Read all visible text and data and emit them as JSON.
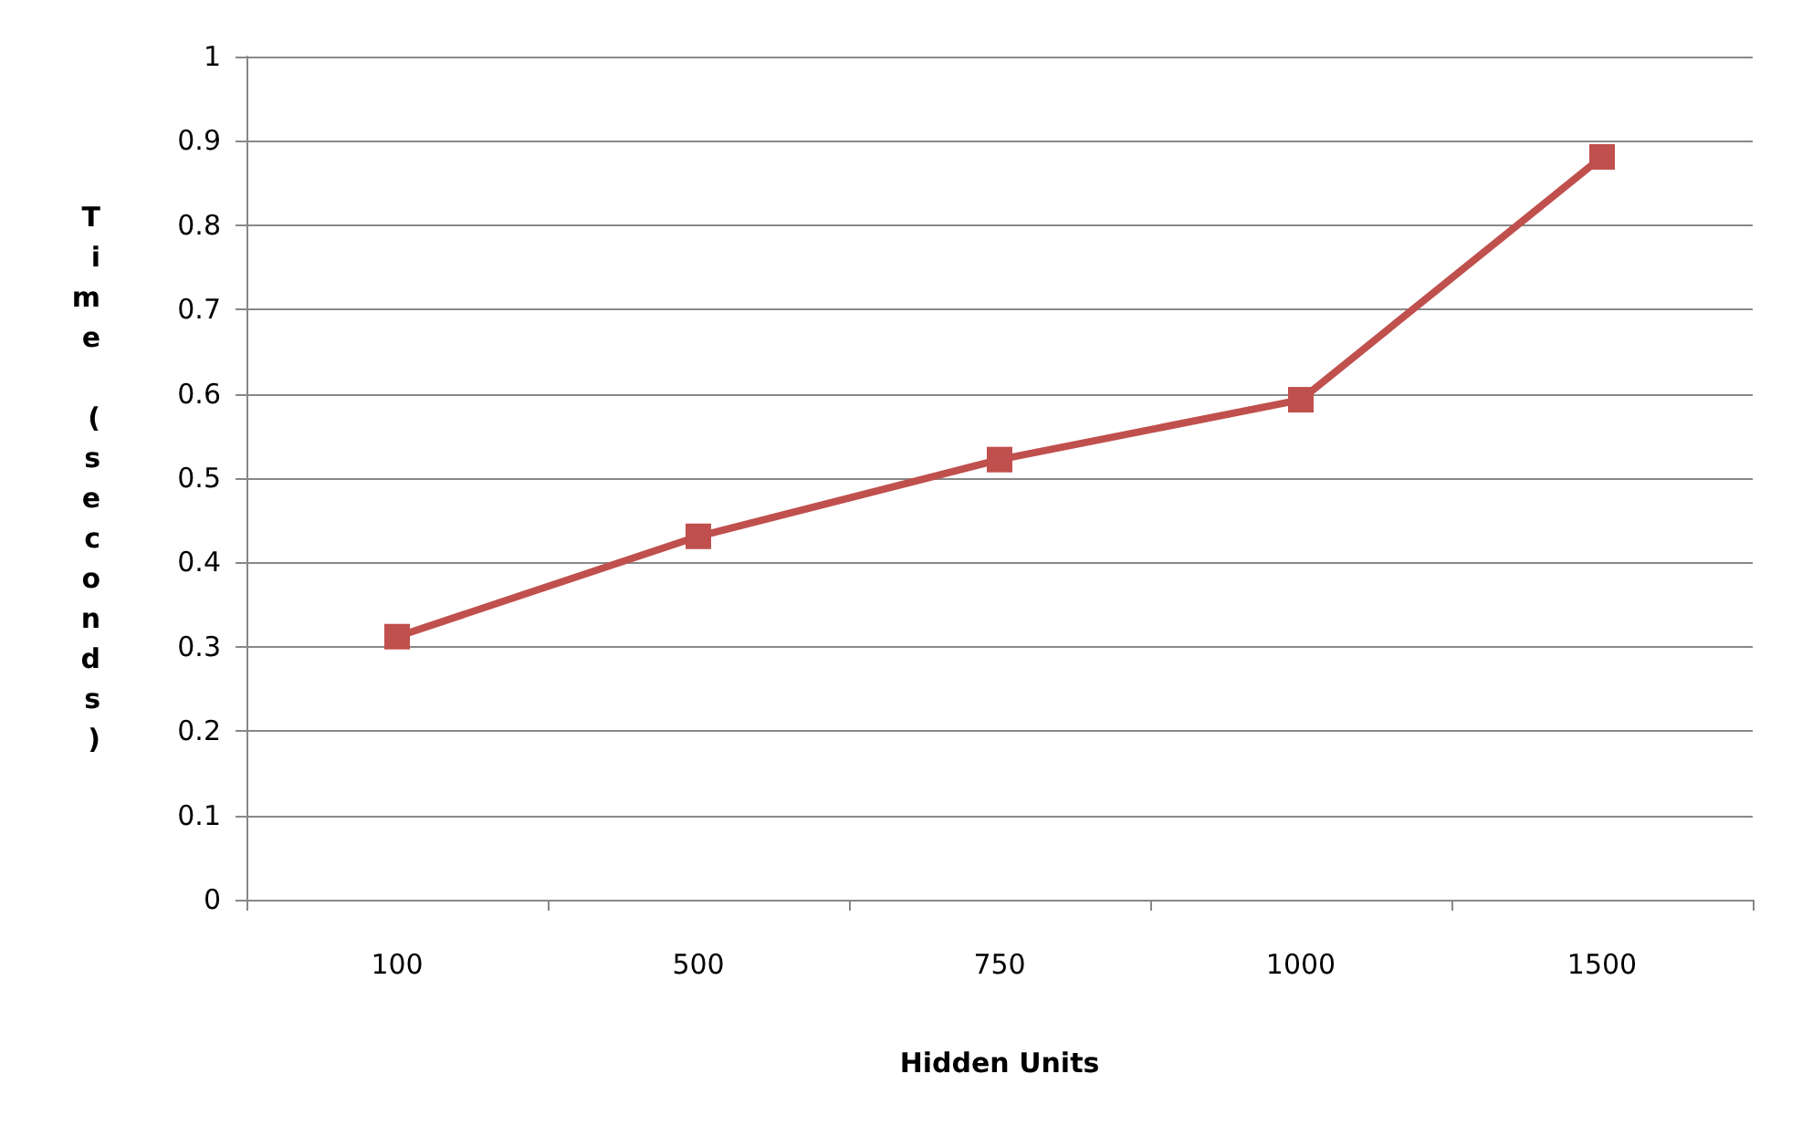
{
  "chart_data": {
    "type": "line",
    "xlabel": "Hidden Units",
    "ylabel": "Time (seconds)",
    "categories": [
      "100",
      "500",
      "750",
      "1000",
      "1500"
    ],
    "series": [
      {
        "color": "#c0504d",
        "values": [
          0.312,
          0.431,
          0.522,
          0.593,
          0.881
        ]
      }
    ],
    "ylim": [
      0,
      1
    ],
    "yticks": [
      0,
      0.1,
      0.2,
      0.3,
      0.4,
      0.5,
      0.6,
      0.7,
      0.8,
      0.9,
      1
    ],
    "grid": "y",
    "marker": "square",
    "line_style": "solid"
  }
}
